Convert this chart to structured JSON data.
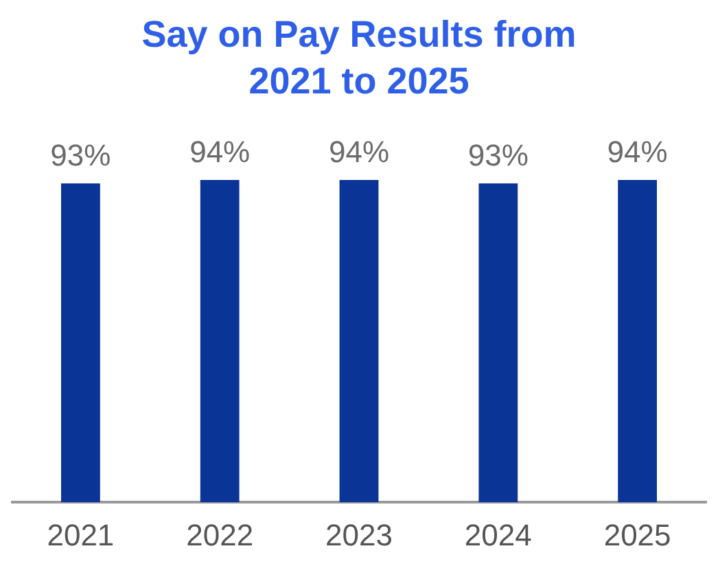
{
  "chart_data": {
    "type": "bar",
    "title": "Say on Pay Results from 2021 to 2025",
    "categories": [
      "2021",
      "2022",
      "2023",
      "2024",
      "2025"
    ],
    "values": [
      93,
      94,
      94,
      93,
      94
    ],
    "value_labels": [
      "93%",
      "94%",
      "94%",
      "93%",
      "94%"
    ],
    "color": "#0a3597",
    "tick_labels": "x",
    "grid": false,
    "legend": false
  }
}
